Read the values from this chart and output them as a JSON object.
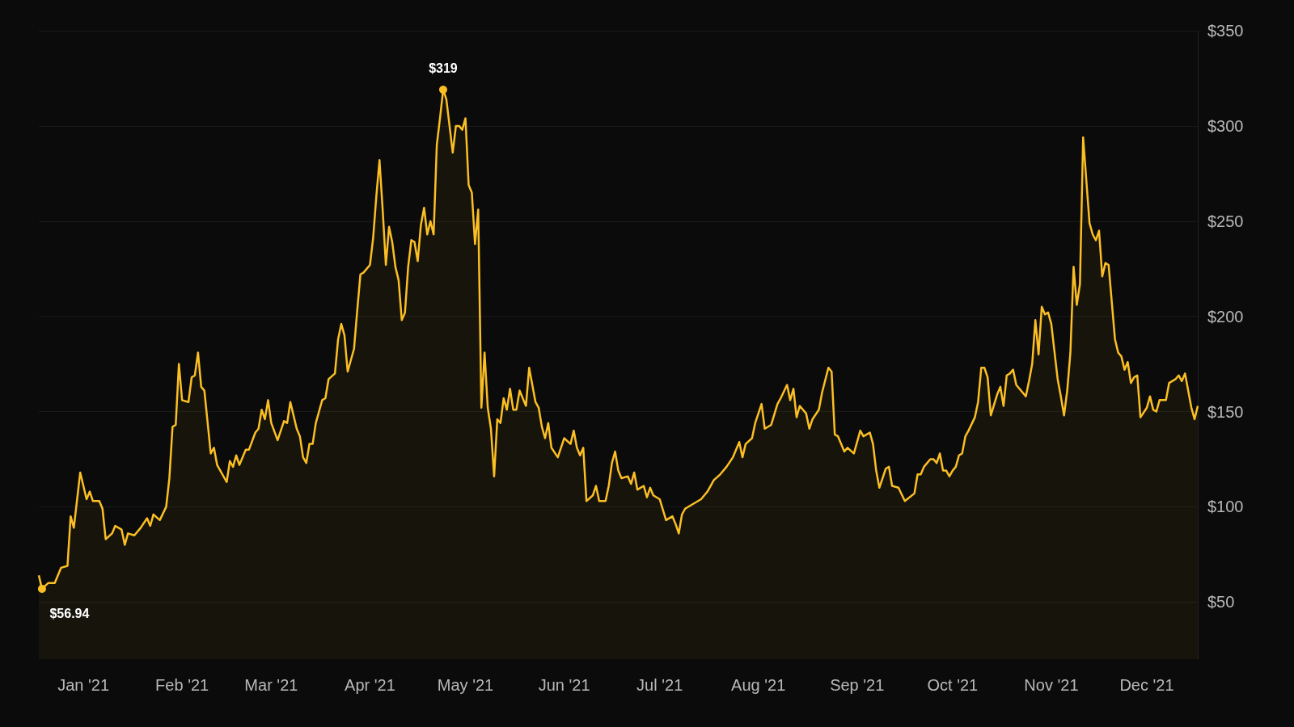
{
  "chart_data": {
    "type": "area",
    "x": [
      "2021-01-01",
      "2021-01-02",
      "2021-01-04",
      "2021-01-06",
      "2021-01-08",
      "2021-01-10",
      "2021-01-11",
      "2021-01-12",
      "2021-01-14",
      "2021-01-16",
      "2021-01-17",
      "2021-01-18",
      "2021-01-20",
      "2021-01-21",
      "2021-01-22",
      "2021-01-24",
      "2021-01-25",
      "2021-01-27",
      "2021-01-28",
      "2021-01-29",
      "2021-01-31",
      "2021-02-02",
      "2021-02-04",
      "2021-02-05",
      "2021-02-06",
      "2021-02-08",
      "2021-02-10",
      "2021-02-11",
      "2021-02-12",
      "2021-02-13",
      "2021-02-14",
      "2021-02-15",
      "2021-02-17",
      "2021-02-18",
      "2021-02-19",
      "2021-02-20",
      "2021-02-21",
      "2021-02-22",
      "2021-02-24",
      "2021-02-25",
      "2021-02-26",
      "2021-02-27",
      "2021-03-01",
      "2021-03-02",
      "2021-03-03",
      "2021-03-04",
      "2021-03-05",
      "2021-03-07",
      "2021-03-08",
      "2021-03-10",
      "2021-03-11",
      "2021-03-12",
      "2021-03-13",
      "2021-03-14",
      "2021-03-15",
      "2021-03-17",
      "2021-03-19",
      "2021-03-20",
      "2021-03-21",
      "2021-03-23",
      "2021-03-24",
      "2021-03-25",
      "2021-03-26",
      "2021-03-27",
      "2021-03-28",
      "2021-03-29",
      "2021-03-30",
      "2021-03-31",
      "2021-04-01",
      "2021-04-02",
      "2021-04-04",
      "2021-04-05",
      "2021-04-06",
      "2021-04-07",
      "2021-04-08",
      "2021-04-10",
      "2021-04-11",
      "2021-04-12",
      "2021-04-13",
      "2021-04-15",
      "2021-04-16",
      "2021-04-17",
      "2021-04-18",
      "2021-04-19",
      "2021-04-20",
      "2021-04-21",
      "2021-04-22",
      "2021-04-23",
      "2021-04-24",
      "2021-04-25",
      "2021-04-26",
      "2021-04-27",
      "2021-04-28",
      "2021-04-29",
      "2021-04-30",
      "2021-05-01",
      "2021-05-02",
      "2021-05-03",
      "2021-05-04",
      "2021-05-05",
      "2021-05-06",
      "2021-05-07",
      "2021-05-08",
      "2021-05-09",
      "2021-05-11",
      "2021-05-12",
      "2021-05-13",
      "2021-05-14",
      "2021-05-15",
      "2021-05-16",
      "2021-05-17",
      "2021-05-18",
      "2021-05-19",
      "2021-05-20",
      "2021-05-21",
      "2021-05-22",
      "2021-05-23",
      "2021-05-24",
      "2021-05-25",
      "2021-05-26",
      "2021-05-27",
      "2021-05-28",
      "2021-05-29",
      "2021-05-30",
      "2021-05-31",
      "2021-06-01",
      "2021-06-03",
      "2021-06-04",
      "2021-06-06",
      "2021-06-07",
      "2021-06-08",
      "2021-06-09",
      "2021-06-10",
      "2021-06-11",
      "2021-06-13",
      "2021-06-15",
      "2021-06-17",
      "2021-06-18",
      "2021-06-19",
      "2021-06-20",
      "2021-06-21",
      "2021-06-22",
      "2021-06-24",
      "2021-06-25",
      "2021-06-26",
      "2021-06-28",
      "2021-06-29",
      "2021-06-30",
      "2021-07-01",
      "2021-07-02",
      "2021-07-03",
      "2021-07-05",
      "2021-07-06",
      "2021-07-07",
      "2021-07-08",
      "2021-07-10",
      "2021-07-11",
      "2021-07-12",
      "2021-07-13",
      "2021-07-15",
      "2021-07-17",
      "2021-07-19",
      "2021-07-20",
      "2021-07-21",
      "2021-07-22",
      "2021-07-23",
      "2021-07-25",
      "2021-07-28",
      "2021-07-30",
      "2021-08-01",
      "2021-08-03",
      "2021-08-05",
      "2021-08-07",
      "2021-08-09",
      "2021-08-10",
      "2021-08-11",
      "2021-08-13",
      "2021-08-14",
      "2021-08-16",
      "2021-08-17",
      "2021-08-19",
      "2021-08-21",
      "2021-08-22",
      "2021-08-24",
      "2021-08-25",
      "2021-08-26",
      "2021-08-27",
      "2021-08-28",
      "2021-08-30",
      "2021-08-31",
      "2021-09-01",
      "2021-09-03",
      "2021-09-04",
      "2021-09-06",
      "2021-09-07",
      "2021-09-08",
      "2021-09-09",
      "2021-09-11",
      "2021-09-12",
      "2021-09-14",
      "2021-09-16",
      "2021-09-17",
      "2021-09-19",
      "2021-09-20",
      "2021-09-21",
      "2021-09-22",
      "2021-09-24",
      "2021-09-25",
      "2021-09-26",
      "2021-09-28",
      "2021-09-30",
      "2021-10-03",
      "2021-10-04",
      "2021-10-05",
      "2021-10-06",
      "2021-10-08",
      "2021-10-09",
      "2021-10-10",
      "2021-10-11",
      "2021-10-12",
      "2021-10-13",
      "2021-10-14",
      "2021-10-15",
      "2021-10-16",
      "2021-10-17",
      "2021-10-18",
      "2021-10-19",
      "2021-10-20",
      "2021-10-22",
      "2021-10-23",
      "2021-10-24",
      "2021-10-25",
      "2021-10-26",
      "2021-10-27",
      "2021-10-29",
      "2021-10-30",
      "2021-10-31",
      "2021-11-01",
      "2021-11-02",
      "2021-11-03",
      "2021-11-04",
      "2021-11-05",
      "2021-11-07",
      "2021-11-08",
      "2021-11-09",
      "2021-11-10",
      "2021-11-11",
      "2021-11-12",
      "2021-11-13",
      "2021-11-14",
      "2021-11-15",
      "2021-11-17",
      "2021-11-18",
      "2021-11-19",
      "2021-11-20",
      "2021-11-21",
      "2021-11-22",
      "2021-11-23",
      "2021-11-24",
      "2021-11-25",
      "2021-11-27",
      "2021-11-28",
      "2021-11-29",
      "2021-11-30",
      "2021-12-01",
      "2021-12-02",
      "2021-12-03",
      "2021-12-05",
      "2021-12-06",
      "2021-12-07",
      "2021-12-08",
      "2021-12-09",
      "2021-12-10",
      "2021-12-11",
      "2021-12-12",
      "2021-12-13",
      "2021-12-15",
      "2021-12-16",
      "2021-12-17",
      "2021-12-18",
      "2021-12-19",
      "2021-12-21",
      "2021-12-22",
      "2021-12-24",
      "2021-12-25",
      "2021-12-26",
      "2021-12-27",
      "2021-12-29",
      "2021-12-30",
      "2021-12-31"
    ],
    "series": [
      {
        "color": "#fbbf24",
        "values": [
          64,
          56.94,
          60,
          60,
          68,
          69,
          95,
          89,
          118,
          104,
          108,
          103,
          103,
          99,
          83,
          86,
          90,
          88,
          80,
          86,
          85,
          89,
          94,
          90,
          96,
          93,
          100,
          115,
          142,
          143,
          175,
          156,
          155,
          168,
          169,
          181,
          163,
          161,
          128,
          131,
          122,
          119,
          113,
          124,
          121,
          127,
          122,
          130,
          130,
          139,
          141,
          151,
          146,
          156,
          144,
          135,
          145,
          144,
          155,
          141,
          137,
          126,
          123,
          133,
          133,
          144,
          150,
          156,
          157,
          167,
          170,
          188,
          196,
          190,
          171,
          183,
          203,
          222,
          223,
          227,
          241,
          263,
          282,
          256,
          227,
          247,
          239,
          226,
          219,
          198,
          202,
          226,
          240,
          239,
          229,
          248,
          257,
          243,
          250,
          243,
          290,
          304,
          319,
          314,
          286,
          300,
          300,
          298,
          304,
          269,
          265,
          238,
          256,
          152,
          181,
          152,
          141,
          116,
          146,
          144,
          157,
          151,
          162,
          151,
          151,
          161,
          153,
          173,
          155,
          152,
          142,
          136,
          144,
          131,
          126,
          136,
          133,
          140,
          131,
          127,
          131,
          103,
          106,
          111,
          103,
          103,
          111,
          123,
          129,
          119,
          115,
          116,
          112,
          118,
          109,
          111,
          105,
          110,
          106,
          104,
          93,
          95,
          91,
          86,
          96,
          99,
          101,
          104,
          108,
          114,
          117,
          121,
          126,
          134,
          126,
          133,
          136,
          144,
          154,
          141,
          143,
          154,
          157,
          164,
          156,
          162,
          147,
          153,
          149,
          141,
          146,
          151,
          160,
          173,
          171,
          138,
          137,
          129,
          131,
          128,
          140,
          137,
          139,
          133,
          119,
          110,
          120,
          121,
          111,
          110,
          103,
          107,
          117,
          117,
          121,
          125,
          125,
          123,
          128,
          119,
          119,
          116,
          119,
          121,
          127,
          128,
          137,
          140,
          147,
          155,
          173,
          173,
          168,
          148,
          159,
          163,
          153,
          169,
          170,
          172,
          164,
          162,
          158,
          166,
          175,
          198,
          180,
          205,
          201,
          202,
          196,
          167,
          158,
          148,
          161,
          181,
          226,
          206,
          217,
          294,
          249,
          243,
          240,
          245,
          221,
          228,
          227,
          188,
          181,
          179,
          172,
          176,
          165,
          168,
          169,
          147,
          152,
          158,
          151,
          150,
          156,
          156,
          165,
          167,
          169,
          166,
          170,
          152,
          146,
          153
        ]
      }
    ],
    "xlim": [
      "2021-01-01",
      "2021-12-31"
    ],
    "xticks": [
      {
        "value": "2021-01-15",
        "label": "Jan '21"
      },
      {
        "value": "2021-02-15",
        "label": "Feb '21"
      },
      {
        "value": "2021-03-15",
        "label": "Mar '21"
      },
      {
        "value": "2021-04-15",
        "label": "Apr '21"
      },
      {
        "value": "2021-05-15",
        "label": "May '21"
      },
      {
        "value": "2021-06-15",
        "label": "Jun '21"
      },
      {
        "value": "2021-07-15",
        "label": "Jul '21"
      },
      {
        "value": "2021-08-15",
        "label": "Aug '21"
      },
      {
        "value": "2021-09-15",
        "label": "Sep '21"
      },
      {
        "value": "2021-10-15",
        "label": "Oct '21"
      },
      {
        "value": "2021-11-15",
        "label": "Nov '21"
      },
      {
        "value": "2021-12-15",
        "label": "Dec '21"
      }
    ],
    "ylim": [
      20,
      350
    ],
    "yticks": [
      {
        "value": 50,
        "label": "$50"
      },
      {
        "value": 100,
        "label": "$100"
      },
      {
        "value": 150,
        "label": "$150"
      },
      {
        "value": 200,
        "label": "$200"
      },
      {
        "value": 250,
        "label": "$250"
      },
      {
        "value": 300,
        "label": "$300"
      },
      {
        "value": 350,
        "label": "$350"
      }
    ],
    "grid": "y",
    "marker": "none",
    "annotations": [
      {
        "text": "$319",
        "x": "2021-05-08",
        "y": 319
      },
      {
        "text": "$56.94",
        "x": "2021-01-02",
        "y": 56.94
      }
    ]
  }
}
